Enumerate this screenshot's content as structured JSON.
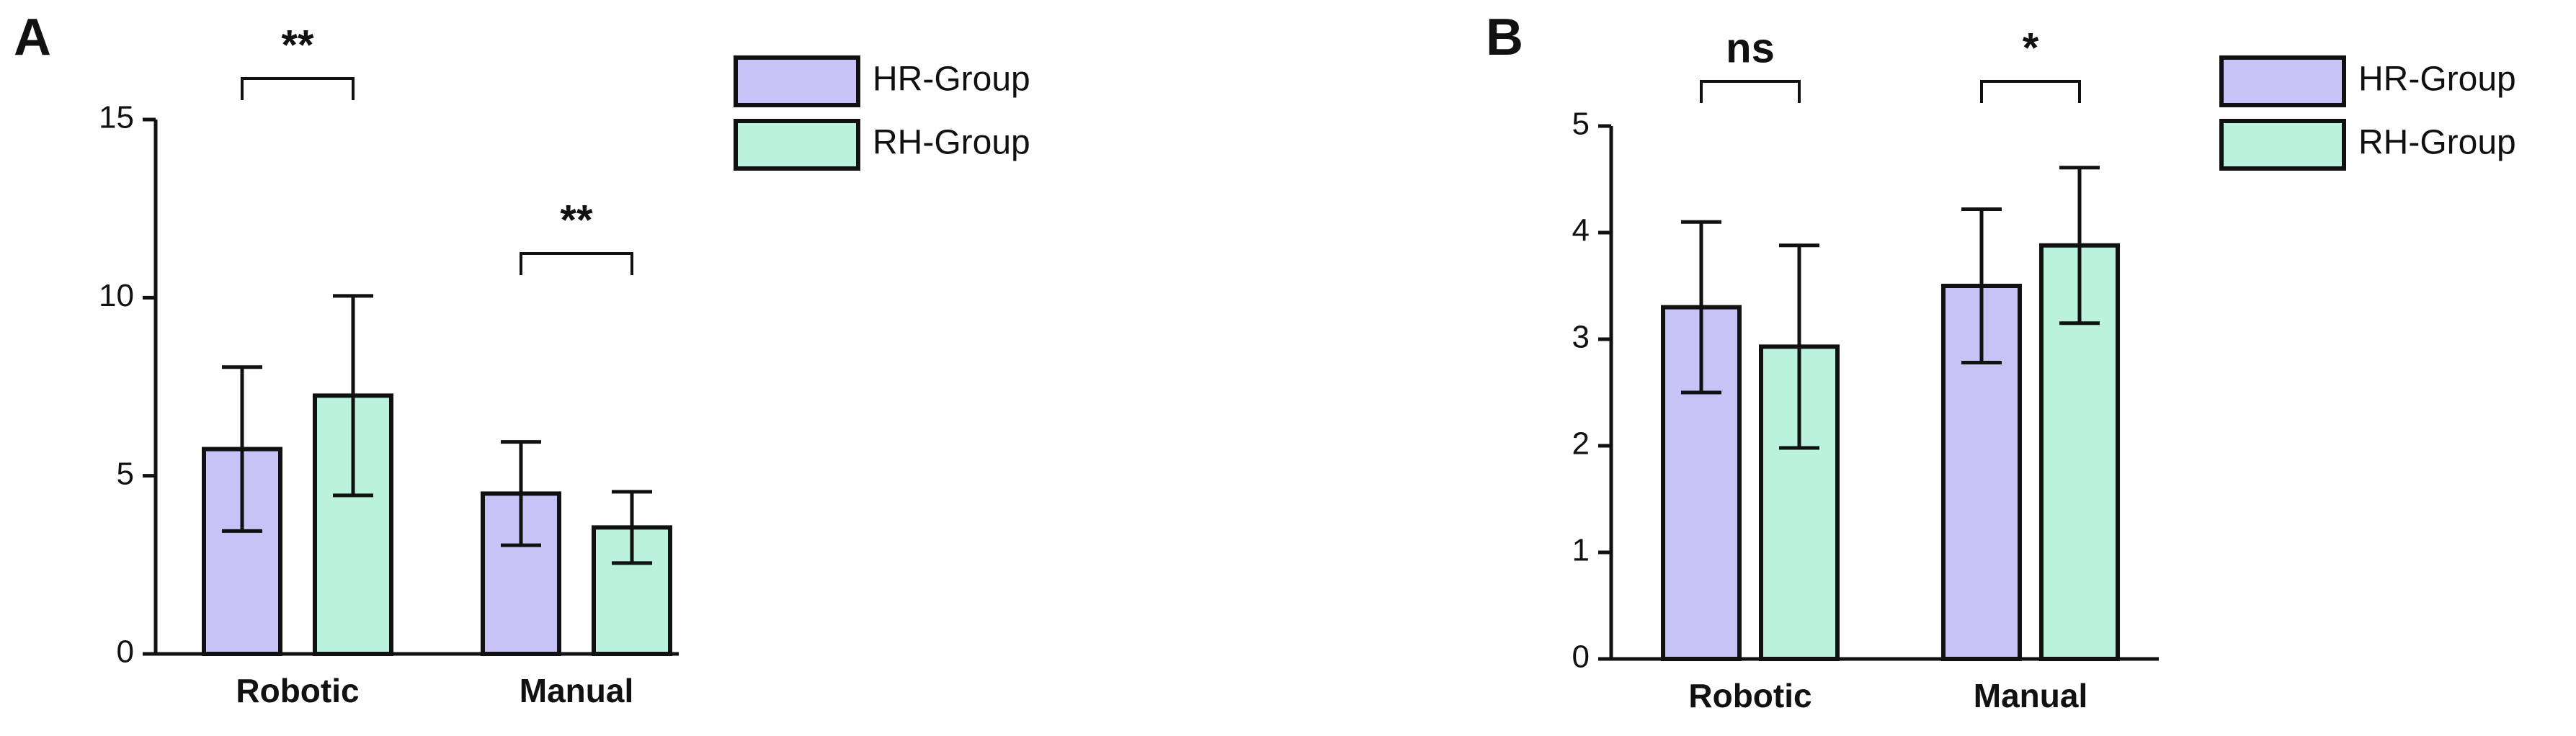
{
  "chart_data": [
    {
      "type": "bar",
      "panel_label": "A",
      "categories": [
        "Robotic",
        "Manual"
      ],
      "series": [
        {
          "name": "HR-Group",
          "color": "#c7c3f6",
          "values": [
            5.75,
            4.5
          ],
          "errors": [
            2.3,
            1.45
          ]
        },
        {
          "name": "RH-Group",
          "color": "#bbf2de",
          "values": [
            7.25,
            3.55
          ],
          "errors": [
            2.8,
            1.0
          ]
        }
      ],
      "significance": [
        "**",
        "**"
      ],
      "ylim": [
        0,
        15
      ],
      "yticks": [
        0,
        5,
        10,
        15
      ]
    },
    {
      "type": "bar",
      "panel_label": "B",
      "categories": [
        "Robotic",
        "Manual"
      ],
      "series": [
        {
          "name": "HR-Group",
          "color": "#c7c3f6",
          "values": [
            3.3,
            3.5
          ],
          "errors": [
            0.8,
            0.72
          ]
        },
        {
          "name": "RH-Group",
          "color": "#bbf2de",
          "values": [
            2.93,
            3.88
          ],
          "errors": [
            0.95,
            0.73
          ]
        }
      ],
      "significance": [
        "ns",
        "*"
      ],
      "ylim": [
        0,
        5
      ],
      "yticks": [
        0,
        1,
        2,
        3,
        4,
        5
      ]
    }
  ]
}
